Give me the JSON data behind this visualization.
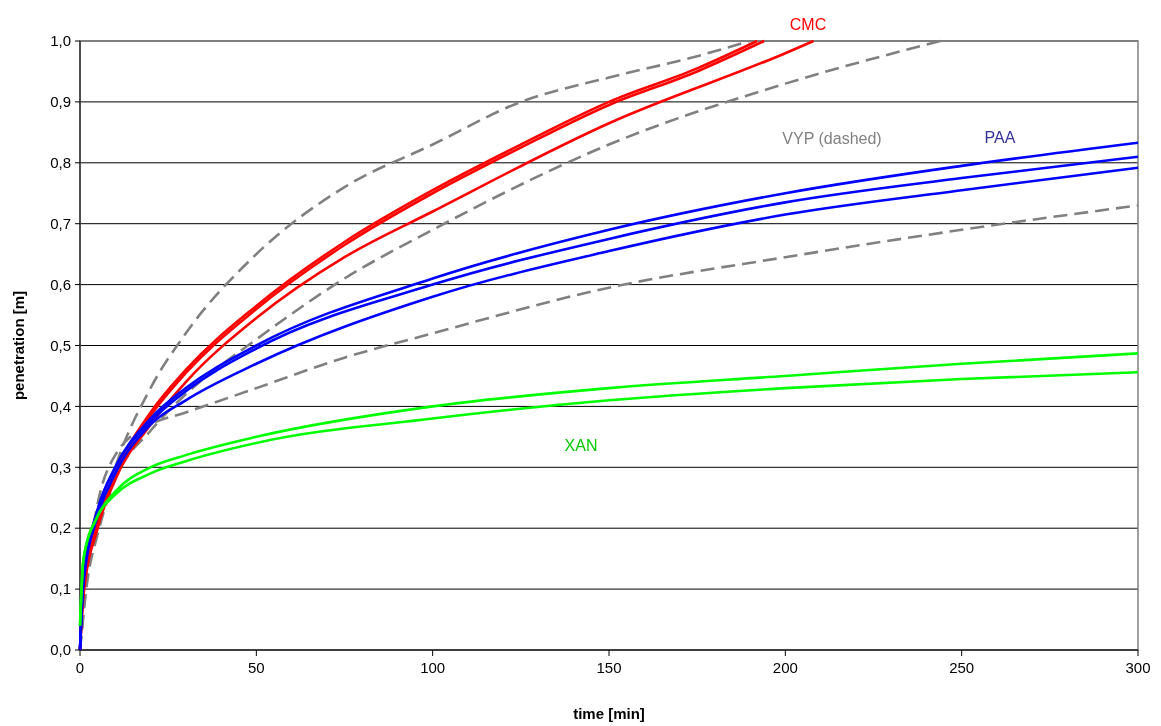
{
  "chart_data": {
    "type": "line",
    "xlabel": "time [min]",
    "ylabel": "penetration [m]",
    "xlim": [
      0,
      300
    ],
    "ylim": [
      0,
      1
    ],
    "xticks": [
      0,
      50,
      100,
      150,
      200,
      250,
      300
    ],
    "yticks": [
      {
        "value": 0,
        "label": "0,0"
      },
      {
        "value": 0.1,
        "label": "0,1"
      },
      {
        "value": 0.2,
        "label": "0,2"
      },
      {
        "value": 0.3,
        "label": "0,3"
      },
      {
        "value": 0.4,
        "label": "0,4"
      },
      {
        "value": 0.5,
        "label": "0,5"
      },
      {
        "value": 0.6,
        "label": "0,6"
      },
      {
        "value": 0.7,
        "label": "0,7"
      },
      {
        "value": 0.8,
        "label": "0,8"
      },
      {
        "value": 0.9,
        "label": "0,9"
      },
      {
        "value": 1,
        "label": "1,0"
      }
    ],
    "grid": "y",
    "marker": "none",
    "annotations": [
      "CMC",
      "VYP (dashed)",
      "PAA",
      "XAN"
    ],
    "series": [
      {
        "color": "#808080",
        "line_style": "dashed",
        "x": [
          0,
          2,
          5,
          10,
          20,
          30,
          50,
          75,
          100,
          125,
          150,
          175,
          190
        ],
        "values": [
          0,
          0.12,
          0.2,
          0.3,
          0.43,
          0.52,
          0.65,
          0.76,
          0.83,
          0.9,
          0.94,
          0.975,
          1.0
        ]
      },
      {
        "color": "#808080",
        "line_style": "dashed",
        "x": [
          0,
          2,
          5,
          10,
          20,
          30,
          50,
          75,
          100,
          150,
          200,
          244
        ],
        "values": [
          0,
          0.11,
          0.19,
          0.28,
          0.36,
          0.42,
          0.51,
          0.61,
          0.69,
          0.83,
          0.93,
          1.0
        ]
      },
      {
        "color": "#808080",
        "line_style": "dashed",
        "x": [
          0,
          2,
          5,
          10,
          20,
          30,
          50,
          75,
          100,
          150,
          200,
          250,
          300
        ],
        "values": [
          0,
          0.13,
          0.24,
          0.32,
          0.37,
          0.39,
          0.43,
          0.48,
          0.52,
          0.595,
          0.645,
          0.69,
          0.73
        ]
      },
      {
        "color": "#ff0000",
        "line_style": "solid",
        "x": [
          0,
          1,
          5,
          10,
          20,
          30,
          50,
          75,
          100,
          125,
          150,
          175,
          192
        ],
        "values": [
          0,
          0.1,
          0.21,
          0.29,
          0.39,
          0.46,
          0.565,
          0.67,
          0.755,
          0.83,
          0.9,
          0.955,
          1.0
        ]
      },
      {
        "color": "#ff0000",
        "line_style": "solid",
        "x": [
          0,
          1,
          5,
          10,
          20,
          30,
          50,
          75,
          100,
          125,
          150,
          175,
          194
        ],
        "values": [
          0,
          0.1,
          0.21,
          0.29,
          0.385,
          0.455,
          0.56,
          0.665,
          0.75,
          0.825,
          0.895,
          0.95,
          1.0
        ]
      },
      {
        "color": "#ff0000",
        "line_style": "solid",
        "x": [
          0,
          1,
          5,
          10,
          20,
          30,
          50,
          75,
          100,
          150,
          200,
          208
        ],
        "values": [
          0,
          0.09,
          0.2,
          0.28,
          0.37,
          0.44,
          0.545,
          0.645,
          0.72,
          0.865,
          0.98,
          1.0
        ]
      },
      {
        "color": "#0000ff",
        "line_style": "solid",
        "x": [
          0,
          1,
          5,
          10,
          20,
          30,
          50,
          100,
          150,
          200,
          250,
          300
        ],
        "values": [
          0,
          0.12,
          0.23,
          0.3,
          0.38,
          0.43,
          0.5,
          0.61,
          0.69,
          0.75,
          0.795,
          0.833
        ]
      },
      {
        "color": "#0000ff",
        "line_style": "solid",
        "x": [
          0,
          1,
          5,
          10,
          20,
          30,
          50,
          100,
          150,
          200,
          250,
          300
        ],
        "values": [
          0,
          0.12,
          0.23,
          0.3,
          0.375,
          0.425,
          0.495,
          0.6,
          0.675,
          0.735,
          0.775,
          0.81
        ]
      },
      {
        "color": "#0000ff",
        "line_style": "solid",
        "x": [
          0,
          1,
          5,
          10,
          20,
          30,
          50,
          100,
          150,
          200,
          250,
          300
        ],
        "values": [
          0,
          0.11,
          0.22,
          0.29,
          0.37,
          0.41,
          0.47,
          0.58,
          0.655,
          0.715,
          0.755,
          0.792
        ]
      },
      {
        "color": "#00ff00",
        "line_style": "solid",
        "x": [
          0,
          1,
          5,
          10,
          20,
          30,
          50,
          100,
          150,
          200,
          250,
          300
        ],
        "values": [
          0.04,
          0.15,
          0.22,
          0.26,
          0.3,
          0.32,
          0.35,
          0.4,
          0.43,
          0.45,
          0.47,
          0.487
        ]
      },
      {
        "color": "#00ff00",
        "line_style": "solid",
        "x": [
          0,
          1,
          5,
          10,
          20,
          30,
          50,
          100,
          150,
          200,
          250,
          300
        ],
        "values": [
          0.04,
          0.15,
          0.22,
          0.255,
          0.29,
          0.31,
          0.34,
          0.38,
          0.41,
          0.43,
          0.445,
          0.456
        ]
      }
    ]
  }
}
